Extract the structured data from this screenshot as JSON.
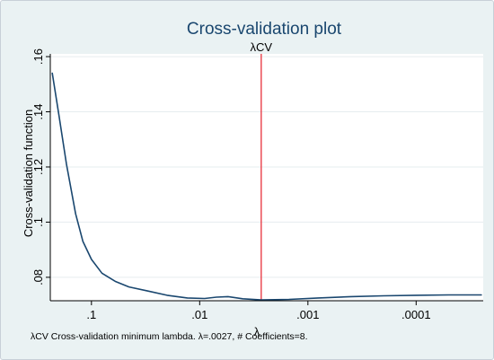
{
  "chart_data": {
    "type": "line",
    "title": "Cross-validation plot",
    "xlabel": "λ",
    "ylabel": "Cross-validation function",
    "x_scale": "log-reversed",
    "xlim": [
      0.24,
      2.4e-05
    ],
    "ylim": [
      0.0715,
      0.161
    ],
    "x_ticks": [
      {
        "value": 0.1,
        "label": ".1"
      },
      {
        "value": 0.01,
        "label": ".01"
      },
      {
        "value": 0.001,
        "label": ".001"
      },
      {
        "value": 0.0001,
        "label": ".0001"
      }
    ],
    "y_ticks": [
      {
        "value": 0.08,
        "label": ".08"
      },
      {
        "value": 0.1,
        "label": ".1"
      },
      {
        "value": 0.12,
        "label": ".12"
      },
      {
        "value": 0.14,
        "label": ".14"
      },
      {
        "value": 0.16,
        "label": ".16"
      }
    ],
    "series": [
      {
        "line_color": "#1a476f",
        "points": [
          {
            "x": 0.23,
            "y": 0.154
          },
          {
            "x": 0.2,
            "y": 0.139
          },
          {
            "x": 0.17,
            "y": 0.121
          },
          {
            "x": 0.14,
            "y": 0.103
          },
          {
            "x": 0.12,
            "y": 0.093
          },
          {
            "x": 0.1,
            "y": 0.0865
          },
          {
            "x": 0.08,
            "y": 0.0815
          },
          {
            "x": 0.06,
            "y": 0.0785
          },
          {
            "x": 0.045,
            "y": 0.0765
          },
          {
            "x": 0.03,
            "y": 0.075
          },
          {
            "x": 0.02,
            "y": 0.0735
          },
          {
            "x": 0.013,
            "y": 0.0725
          },
          {
            "x": 0.009,
            "y": 0.0723
          },
          {
            "x": 0.007,
            "y": 0.0728
          },
          {
            "x": 0.0055,
            "y": 0.073
          },
          {
            "x": 0.004,
            "y": 0.0722
          },
          {
            "x": 0.0027,
            "y": 0.0718
          },
          {
            "x": 0.0015,
            "y": 0.072
          },
          {
            "x": 0.0008,
            "y": 0.0725
          },
          {
            "x": 0.0004,
            "y": 0.073
          },
          {
            "x": 0.0002,
            "y": 0.0733
          },
          {
            "x": 0.0001,
            "y": 0.0735
          },
          {
            "x": 5e-05,
            "y": 0.0736
          },
          {
            "x": 2.5e-05,
            "y": 0.0736
          }
        ]
      }
    ],
    "reference_line": {
      "x": 0.0027,
      "label": "λCV",
      "color": "#e8303a"
    },
    "note": "λCV  Cross-validation minimum lambda.  λ=.0027, # Coefficients=8.",
    "grid": "horizontal",
    "legend": "none"
  },
  "colors": {
    "background": "#eaf2f3",
    "plot_background": "#ffffff",
    "grid": "#e6ecef",
    "title": "#1a476f"
  }
}
